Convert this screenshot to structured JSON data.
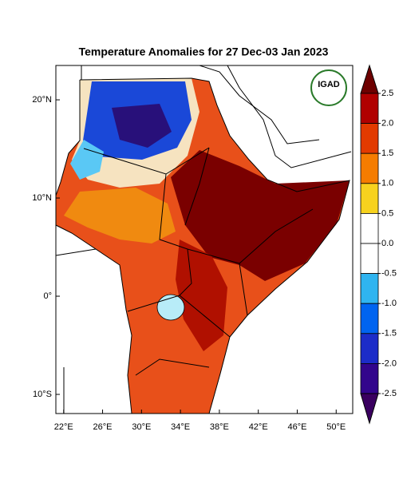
{
  "title": "Temperature Anomalies for 27 Dec-03 Jan 2023",
  "logo_text": "IGAD",
  "map": {
    "lonlim": [
      21.2,
      51.7
    ],
    "latlim": [
      -11.95,
      23.5
    ],
    "lon_ticks": [
      {
        "value": 22,
        "label": "22°E"
      },
      {
        "value": 26,
        "label": "26°E"
      },
      {
        "value": 30,
        "label": "30°E"
      },
      {
        "value": 34,
        "label": "34°E"
      },
      {
        "value": 38,
        "label": "38°E"
      },
      {
        "value": 42,
        "label": "42°E"
      },
      {
        "value": 46,
        "label": "46°E"
      },
      {
        "value": 50,
        "label": "50°E"
      }
    ],
    "lat_ticks": [
      {
        "value": 20,
        "label": "20°N"
      },
      {
        "value": 10,
        "label": "10°N"
      },
      {
        "value": 0,
        "label": "0°"
      },
      {
        "value": -10,
        "label": "10°S"
      }
    ]
  },
  "colorbar": {
    "levels": [
      2.5,
      {
        "value": 2,
        "label": "2.0"
      },
      1.5,
      {
        "value": 1,
        "label": "1.0"
      },
      0.5,
      {
        "value": 0,
        "label": "0.0"
      },
      -0.5,
      {
        "value": -1,
        "label": "-1.0"
      },
      -1.5,
      {
        "value": -2,
        "label": "-2.0"
      },
      -2.5
    ],
    "colors": [
      "#6e0000",
      "#b00000",
      "#e23a00",
      "#f57c00",
      "#f7d21e",
      "#ffffff",
      "#ffffff",
      "#2fb4f0",
      "#0064f0",
      "#1c2cc8",
      "#32058c",
      "#3a0060"
    ]
  }
}
